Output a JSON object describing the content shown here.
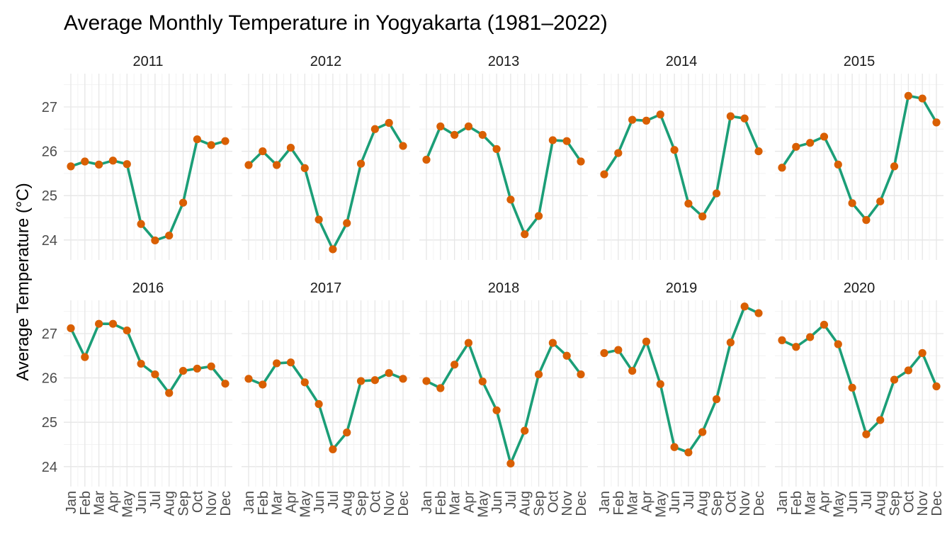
{
  "chart_data": {
    "type": "line",
    "title": "Average Monthly Temperature in Yogyakarta (1981–2022)",
    "ylabel": "Average Temperature (°C)",
    "xlabel": "",
    "facet_layout": "2 rows x 5 columns",
    "categories": [
      "Jan",
      "Feb",
      "Mar",
      "Apr",
      "May",
      "Jun",
      "Jul",
      "Aug",
      "Sep",
      "Oct",
      "Nov",
      "Dec"
    ],
    "yticks": [
      24,
      25,
      26,
      27
    ],
    "ylim": [
      23.55,
      27.75
    ],
    "grid": true,
    "line_color": "#1b9e77",
    "point_color": "#d95f02",
    "series": [
      {
        "name": "2011",
        "values": [
          25.66,
          25.77,
          25.7,
          25.79,
          25.71,
          24.36,
          23.99,
          24.1,
          24.84,
          26.27,
          26.14,
          26.23
        ]
      },
      {
        "name": "2012",
        "values": [
          25.69,
          26.0,
          25.69,
          26.08,
          25.62,
          24.46,
          23.79,
          24.38,
          25.72,
          26.5,
          26.64,
          26.12
        ]
      },
      {
        "name": "2013",
        "values": [
          25.81,
          26.56,
          26.37,
          26.56,
          26.37,
          26.05,
          24.91,
          24.13,
          24.54,
          26.25,
          26.23,
          25.77
        ]
      },
      {
        "name": "2014",
        "values": [
          25.48,
          25.96,
          26.71,
          26.69,
          26.83,
          26.03,
          24.82,
          24.53,
          25.05,
          26.79,
          26.74,
          26.0
        ]
      },
      {
        "name": "2015",
        "values": [
          25.63,
          26.1,
          26.19,
          26.33,
          25.7,
          24.83,
          24.45,
          24.87,
          25.66,
          27.25,
          27.19,
          26.65
        ]
      },
      {
        "name": "2016",
        "values": [
          27.12,
          26.47,
          27.22,
          27.22,
          27.07,
          26.32,
          26.08,
          25.66,
          26.16,
          26.21,
          26.26,
          25.87
        ]
      },
      {
        "name": "2017",
        "values": [
          25.98,
          25.85,
          26.33,
          26.35,
          25.9,
          25.41,
          24.39,
          24.77,
          25.93,
          25.95,
          26.11,
          25.98
        ]
      },
      {
        "name": "2018",
        "values": [
          25.93,
          25.77,
          26.3,
          26.79,
          25.92,
          25.27,
          24.07,
          24.81,
          26.08,
          26.79,
          26.5,
          26.08
        ]
      },
      {
        "name": "2019",
        "values": [
          26.56,
          26.63,
          26.16,
          26.82,
          25.86,
          24.44,
          24.32,
          24.78,
          25.52,
          26.8,
          27.61,
          27.46
        ]
      },
      {
        "name": "2020",
        "values": [
          26.85,
          26.7,
          26.92,
          27.2,
          26.76,
          25.78,
          24.73,
          25.05,
          25.96,
          26.17,
          26.56,
          25.81
        ]
      }
    ]
  }
}
